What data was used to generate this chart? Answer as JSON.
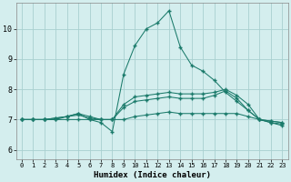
{
  "xlabel": "Humidex (Indice chaleur)",
  "bg_color": "#d4eeee",
  "grid_color": "#a8d0d0",
  "line_color": "#1a7a6a",
  "xlim": [
    -0.5,
    23.5
  ],
  "ylim": [
    5.7,
    10.85
  ],
  "yticks": [
    6,
    7,
    8,
    9,
    10
  ],
  "xticks": [
    0,
    1,
    2,
    3,
    4,
    5,
    6,
    7,
    8,
    9,
    10,
    11,
    12,
    13,
    14,
    15,
    16,
    17,
    18,
    19,
    20,
    21,
    22,
    23
  ],
  "series": [
    [
      7.0,
      7.0,
      7.0,
      7.0,
      7.1,
      7.2,
      7.0,
      6.9,
      6.6,
      8.5,
      9.45,
      10.0,
      10.2,
      10.6,
      9.4,
      8.8,
      8.6,
      8.3,
      7.9,
      7.6,
      7.3,
      7.0,
      6.9,
      6.8
    ],
    [
      7.0,
      7.0,
      7.0,
      7.0,
      7.0,
      7.0,
      7.0,
      7.0,
      7.0,
      7.0,
      7.1,
      7.15,
      7.2,
      7.25,
      7.2,
      7.2,
      7.2,
      7.2,
      7.2,
      7.2,
      7.1,
      7.0,
      6.9,
      6.85
    ],
    [
      7.0,
      7.0,
      7.0,
      7.05,
      7.1,
      7.15,
      7.05,
      7.0,
      7.0,
      7.4,
      7.6,
      7.65,
      7.7,
      7.75,
      7.7,
      7.7,
      7.7,
      7.8,
      7.95,
      7.7,
      7.3,
      7.0,
      6.95,
      6.9
    ],
    [
      7.0,
      7.0,
      7.0,
      7.05,
      7.1,
      7.2,
      7.1,
      7.0,
      7.0,
      7.5,
      7.75,
      7.8,
      7.85,
      7.9,
      7.85,
      7.85,
      7.85,
      7.9,
      8.0,
      7.8,
      7.5,
      7.0,
      6.95,
      6.9
    ]
  ]
}
